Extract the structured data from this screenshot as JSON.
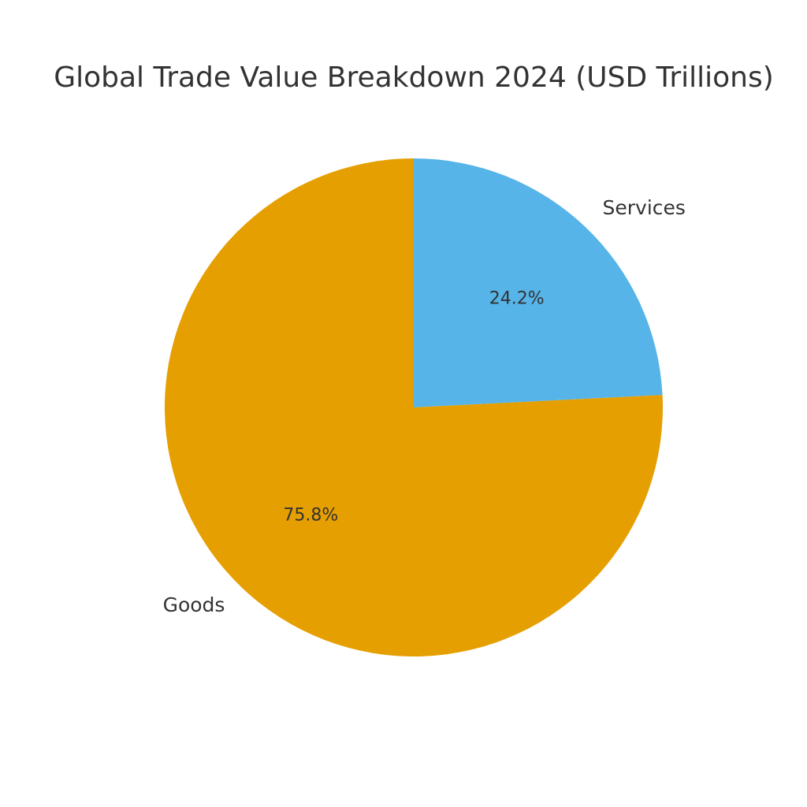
{
  "chart_data": {
    "type": "pie",
    "title": "Global Trade Value Breakdown 2024 (USD Trillions)",
    "start_angle_deg": 90,
    "direction": "clockwise",
    "slices": [
      {
        "label": "Services",
        "percent": 24.2,
        "percent_label": "24.2%",
        "color": "#56B4E9"
      },
      {
        "label": "Goods",
        "percent": 75.8,
        "percent_label": "75.8%",
        "color": "#E69F00"
      }
    ]
  }
}
